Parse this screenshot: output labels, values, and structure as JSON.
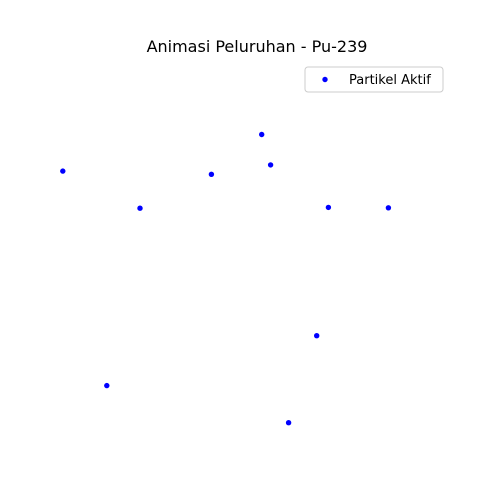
{
  "chart_data": {
    "type": "scatter",
    "title": "Animasi Peluruhan - Pu-239",
    "xlabel": "",
    "ylabel": "",
    "axes_visible": false,
    "grid": false,
    "legend_position": "top-right",
    "xlim": [
      0,
      10
    ],
    "ylim": [
      0,
      10
    ],
    "series": [
      {
        "name": "Partikel Aktif",
        "color": "#0000ff",
        "points": [
          {
            "x": 0.02,
            "y": 7.33
          },
          {
            "x": 2.0,
            "y": 6.38
          },
          {
            "x": 3.83,
            "y": 7.25
          },
          {
            "x": 5.12,
            "y": 8.27
          },
          {
            "x": 5.35,
            "y": 7.49
          },
          {
            "x": 6.83,
            "y": 6.4
          },
          {
            "x": 8.37,
            "y": 6.39
          },
          {
            "x": 6.53,
            "y": 3.11
          },
          {
            "x": 1.15,
            "y": 1.83
          },
          {
            "x": 5.81,
            "y": 0.88
          }
        ]
      }
    ]
  }
}
